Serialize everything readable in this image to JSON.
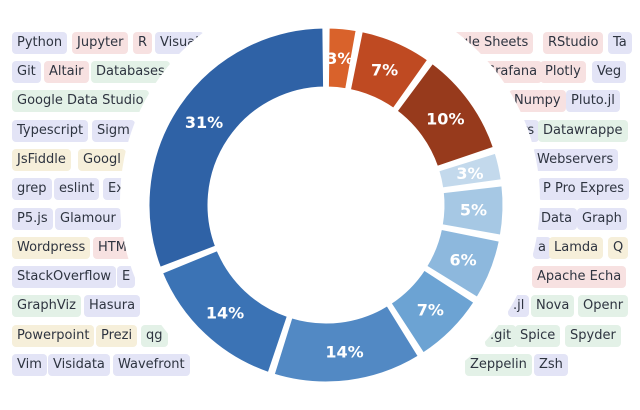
{
  "background_tags": [
    {
      "text": "Python",
      "tone": "lav"
    },
    {
      "text": "Jupyter",
      "tone": "pink"
    },
    {
      "text": "R",
      "tone": "pink"
    },
    {
      "text": "Visual",
      "tone": "lav"
    },
    {
      "text": "ogle Sheets",
      "tone": "pink"
    },
    {
      "text": "RStudio",
      "tone": "pink"
    },
    {
      "text": "Ta",
      "tone": "lav"
    },
    {
      "text": "Git",
      "tone": "lav"
    },
    {
      "text": "Altair",
      "tone": "pink"
    },
    {
      "text": "Databases",
      "tone": "green"
    },
    {
      "text": "Grafana",
      "tone": "pink"
    },
    {
      "text": "Plotly",
      "tone": "pink"
    },
    {
      "text": "Veg",
      "tone": "lav"
    },
    {
      "text": "Google Data Studio",
      "tone": "green"
    },
    {
      "text": "Numpy",
      "tone": "pink"
    },
    {
      "text": "Pluto.jl",
      "tone": "lav"
    },
    {
      "text": "Typescript",
      "tone": "lav"
    },
    {
      "text": "Sigm",
      "tone": "lav"
    },
    {
      "text": "rs",
      "tone": "lav"
    },
    {
      "text": "Datawrappe",
      "tone": "green"
    },
    {
      "text": "JsFiddle",
      "tone": "yellow"
    },
    {
      "text": "Googl",
      "tone": "yellow"
    },
    {
      "text": "Webservers",
      "tone": "lav"
    },
    {
      "text": "grep",
      "tone": "lav"
    },
    {
      "text": "eslint",
      "tone": "lav"
    },
    {
      "text": "Ex",
      "tone": "lav"
    },
    {
      "text": "P Pro",
      "tone": "lav"
    },
    {
      "text": "Expres",
      "tone": "lav"
    },
    {
      "text": "P5.js",
      "tone": "lav"
    },
    {
      "text": "Glamour",
      "tone": "lav"
    },
    {
      "text": "Data",
      "tone": "lav"
    },
    {
      "text": "Graph",
      "tone": "lav"
    },
    {
      "text": "Wordpress",
      "tone": "yellow"
    },
    {
      "text": "HTM",
      "tone": "pink"
    },
    {
      "text": "a",
      "tone": "lav"
    },
    {
      "text": "Lamda",
      "tone": "yellow"
    },
    {
      "text": "Q",
      "tone": "yellow"
    },
    {
      "text": "StackOverflow",
      "tone": "lav"
    },
    {
      "text": "E",
      "tone": "lav"
    },
    {
      "text": "Apache Echa",
      "tone": "pink"
    },
    {
      "text": "GraphViz",
      "tone": "green"
    },
    {
      "text": "Hasura",
      "tone": "lav"
    },
    {
      "text": ".jl",
      "tone": "lav"
    },
    {
      "text": "Nova",
      "tone": "green"
    },
    {
      "text": "Openr",
      "tone": "green"
    },
    {
      "text": "Powerpoint",
      "tone": "yellow"
    },
    {
      "text": "Prezi",
      "tone": "yellow"
    },
    {
      "text": "qg",
      "tone": "green"
    },
    {
      "text": ".git",
      "tone": "green"
    },
    {
      "text": "Spice",
      "tone": "green"
    },
    {
      "text": "Spyder",
      "tone": "green"
    },
    {
      "text": "Vim",
      "tone": "lav"
    },
    {
      "text": "Visidata",
      "tone": "lav"
    },
    {
      "text": "Wavefront",
      "tone": "lav"
    },
    {
      "text": "Zeppelin",
      "tone": "green"
    },
    {
      "text": "Zsh",
      "tone": "lav"
    }
  ],
  "chart_data": {
    "type": "pie",
    "donut": true,
    "title": "",
    "legend": "none",
    "slices": [
      {
        "value": 3,
        "label": "3%",
        "color": "#d9622b"
      },
      {
        "value": 7,
        "label": "7%",
        "color": "#bf4a22"
      },
      {
        "value": 10,
        "label": "10%",
        "color": "#973a1c"
      },
      {
        "value": 3,
        "label": "3%",
        "color": "#c3d9ec"
      },
      {
        "value": 5,
        "label": "5%",
        "color": "#a6c8e4"
      },
      {
        "value": 6,
        "label": "6%",
        "color": "#8db8dd"
      },
      {
        "value": 7,
        "label": "7%",
        "color": "#6ca3d3"
      },
      {
        "value": 14,
        "label": "14%",
        "color": "#5289c4"
      },
      {
        "value": 14,
        "label": "14%",
        "color": "#3b73b5"
      },
      {
        "value": 31,
        "label": "31%",
        "color": "#2f62a6"
      }
    ]
  }
}
